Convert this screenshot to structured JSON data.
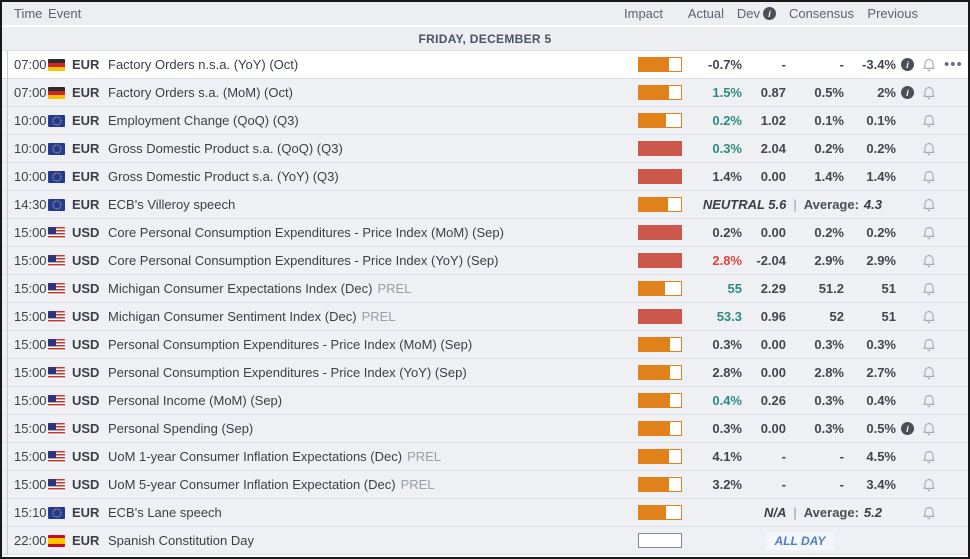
{
  "header": {
    "time": "Time",
    "event": "Event",
    "impact": "Impact",
    "actual": "Actual",
    "dev": "Dev",
    "consensus": "Consensus",
    "previous": "Previous"
  },
  "date_header": "FRIDAY, DECEMBER 5",
  "icons": {
    "info": "i",
    "menu": "•••"
  },
  "colors": {
    "impact_medium": "#e0811c",
    "impact_high": "#cc584c",
    "actual_positive": "#2e8b80",
    "actual_negative": "#d5493d",
    "all_day_blue": "#4f7fbf"
  },
  "rows": [
    {
      "time": "07:00",
      "country": "de",
      "currency": "EUR",
      "event": "Factory Orders n.s.a. (YoY) (Oct)",
      "tag": "",
      "impact": {
        "style": "medium",
        "fill": 72
      },
      "actual": {
        "text": "-0.7%",
        "tone": "dark"
      },
      "dev": "-",
      "consensus": "-",
      "previous": "-3.4%",
      "previous_info": true,
      "bell": true,
      "menu": true,
      "current": true
    },
    {
      "time": "07:00",
      "country": "de",
      "currency": "EUR",
      "event": "Factory Orders s.a. (MoM) (Oct)",
      "tag": "",
      "impact": {
        "style": "medium",
        "fill": 72
      },
      "actual": {
        "text": "1.5%",
        "tone": "teal"
      },
      "dev": "0.87",
      "consensus": "0.5%",
      "previous": "2%",
      "previous_info": true,
      "bell": true
    },
    {
      "time": "10:00",
      "country": "eu",
      "currency": "EUR",
      "event": "Employment Change (QoQ) (Q3)",
      "tag": "",
      "impact": {
        "style": "medium",
        "fill": 64
      },
      "actual": {
        "text": "0.2%",
        "tone": "teal"
      },
      "dev": "1.02",
      "consensus": "0.1%",
      "previous": "0.1%",
      "bell": true
    },
    {
      "time": "10:00",
      "country": "eu",
      "currency": "EUR",
      "event": "Gross Domestic Product s.a. (QoQ) (Q3)",
      "tag": "",
      "impact": {
        "style": "high",
        "fill": 100
      },
      "actual": {
        "text": "0.3%",
        "tone": "teal"
      },
      "dev": "2.04",
      "consensus": "0.2%",
      "previous": "0.2%",
      "bell": true
    },
    {
      "time": "10:00",
      "country": "eu",
      "currency": "EUR",
      "event": "Gross Domestic Product s.a. (YoY) (Q3)",
      "tag": "",
      "impact": {
        "style": "high",
        "fill": 100
      },
      "actual": {
        "text": "1.4%",
        "tone": "dark"
      },
      "dev": "0.00",
      "consensus": "1.4%",
      "previous": "1.4%",
      "bell": true
    },
    {
      "time": "14:30",
      "country": "eu",
      "currency": "EUR",
      "event": "ECB's Villeroy speech",
      "tag": "",
      "impact": {
        "style": "medium",
        "fill": 70
      },
      "speech": {
        "value": "NEUTRAL 5.6",
        "separator": "|",
        "average_label": "Average:",
        "average": "4.3"
      },
      "bell": true
    },
    {
      "time": "15:00",
      "country": "us",
      "currency": "USD",
      "event": "Core Personal Consumption Expenditures - Price Index (MoM) (Sep)",
      "tag": "",
      "impact": {
        "style": "high",
        "fill": 100
      },
      "actual": {
        "text": "0.2%",
        "tone": "dark"
      },
      "dev": "0.00",
      "consensus": "0.2%",
      "previous": "0.2%",
      "bell": true
    },
    {
      "time": "15:00",
      "country": "us",
      "currency": "USD",
      "event": "Core Personal Consumption Expenditures - Price Index (YoY) (Sep)",
      "tag": "",
      "impact": {
        "style": "high",
        "fill": 100
      },
      "actual": {
        "text": "2.8%",
        "tone": "red"
      },
      "dev": "-2.04",
      "consensus": "2.9%",
      "previous": "2.9%",
      "bell": true
    },
    {
      "time": "15:00",
      "country": "us",
      "currency": "USD",
      "event": "Michigan Consumer Expectations Index (Dec)",
      "tag": "PREL",
      "impact": {
        "style": "medium",
        "fill": 62
      },
      "actual": {
        "text": "55",
        "tone": "teal"
      },
      "dev": "2.29",
      "consensus": "51.2",
      "previous": "51",
      "bell": true
    },
    {
      "time": "15:00",
      "country": "us",
      "currency": "USD",
      "event": "Michigan Consumer Sentiment Index (Dec)",
      "tag": "PREL",
      "impact": {
        "style": "high",
        "fill": 100
      },
      "actual": {
        "text": "53.3",
        "tone": "teal"
      },
      "dev": "0.96",
      "consensus": "52",
      "previous": "51",
      "bell": true
    },
    {
      "time": "15:00",
      "country": "us",
      "currency": "USD",
      "event": "Personal Consumption Expenditures - Price Index (MoM) (Sep)",
      "tag": "",
      "impact": {
        "style": "medium",
        "fill": 73
      },
      "actual": {
        "text": "0.3%",
        "tone": "dark"
      },
      "dev": "0.00",
      "consensus": "0.3%",
      "previous": "0.3%",
      "bell": true
    },
    {
      "time": "15:00",
      "country": "us",
      "currency": "USD",
      "event": "Personal Consumption Expenditures - Price Index (YoY) (Sep)",
      "tag": "",
      "impact": {
        "style": "medium",
        "fill": 73
      },
      "actual": {
        "text": "2.8%",
        "tone": "dark"
      },
      "dev": "0.00",
      "consensus": "2.8%",
      "previous": "2.7%",
      "bell": true
    },
    {
      "time": "15:00",
      "country": "us",
      "currency": "USD",
      "event": "Personal Income (MoM) (Sep)",
      "tag": "",
      "impact": {
        "style": "medium",
        "fill": 73
      },
      "actual": {
        "text": "0.4%",
        "tone": "teal"
      },
      "dev": "0.26",
      "consensus": "0.3%",
      "previous": "0.4%",
      "bell": true
    },
    {
      "time": "15:00",
      "country": "us",
      "currency": "USD",
      "event": "Personal Spending (Sep)",
      "tag": "",
      "impact": {
        "style": "medium",
        "fill": 73
      },
      "actual": {
        "text": "0.3%",
        "tone": "dark"
      },
      "dev": "0.00",
      "consensus": "0.3%",
      "previous": "0.5%",
      "previous_info": true,
      "bell": true
    },
    {
      "time": "15:00",
      "country": "us",
      "currency": "USD",
      "event": "UoM 1-year Consumer Inflation Expectations (Dec)",
      "tag": "PREL",
      "impact": {
        "style": "medium",
        "fill": 72
      },
      "actual": {
        "text": "4.1%",
        "tone": "dark"
      },
      "dev": "-",
      "consensus": "-",
      "previous": "4.5%",
      "bell": true
    },
    {
      "time": "15:00",
      "country": "us",
      "currency": "USD",
      "event": "UoM 5-year Consumer Inflation Expectation (Dec)",
      "tag": "PREL",
      "impact": {
        "style": "medium",
        "fill": 72
      },
      "actual": {
        "text": "3.2%",
        "tone": "dark"
      },
      "dev": "-",
      "consensus": "-",
      "previous": "3.4%",
      "bell": true
    },
    {
      "time": "15:10",
      "country": "eu",
      "currency": "EUR",
      "event": "ECB's Lane speech",
      "tag": "",
      "impact": {
        "style": "medium",
        "fill": 65
      },
      "speech": {
        "value": "N/A",
        "separator": "|",
        "average_label": "Average:",
        "average": "5.2"
      },
      "bell": true
    },
    {
      "time": "22:00",
      "country": "es",
      "currency": "EUR",
      "event": "Spanish Constitution Day",
      "tag": "",
      "impact": {
        "style": "holiday",
        "fill": 0
      },
      "all_day": "ALL DAY"
    }
  ]
}
